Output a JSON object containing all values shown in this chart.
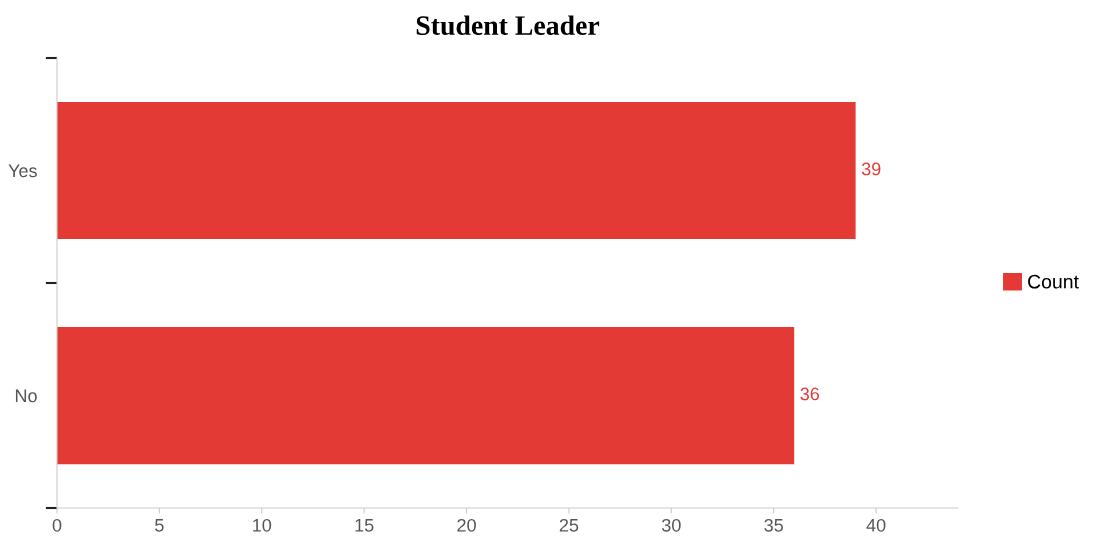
{
  "chart_data": {
    "type": "bar",
    "orientation": "horizontal",
    "title": "Student Leader",
    "categories": [
      "Yes",
      "No"
    ],
    "series": [
      {
        "name": "Count",
        "color": "#e33a35",
        "values": [
          39,
          36
        ]
      }
    ],
    "xlim": [
      0,
      44
    ],
    "xticks": [
      0,
      5,
      10,
      15,
      20,
      25,
      30,
      35,
      40
    ],
    "data_labels": true,
    "legend": "right",
    "grid": false
  }
}
